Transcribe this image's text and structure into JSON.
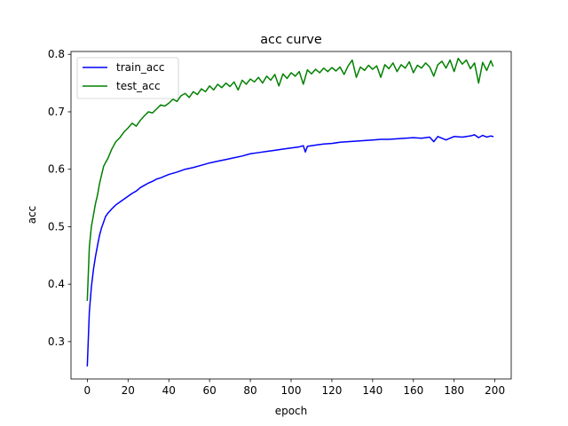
{
  "chart_data": {
    "type": "line",
    "title": "acc curve",
    "xlabel": "epoch",
    "ylabel": "acc",
    "xlim": [
      -8,
      208
    ],
    "ylim": [
      0.235,
      0.805
    ],
    "xticks": [
      0,
      20,
      40,
      60,
      80,
      100,
      120,
      140,
      160,
      180,
      200
    ],
    "yticks": [
      0.3,
      0.4,
      0.5,
      0.6,
      0.7,
      0.8
    ],
    "grid": false,
    "legend_position": "upper left",
    "colors": {
      "train_acc": "#0000ff",
      "test_acc": "#008000"
    },
    "series": [
      {
        "name": "train_acc",
        "color": "#0000ff",
        "points": [
          [
            0,
            0.258
          ],
          [
            1,
            0.352
          ],
          [
            2,
            0.395
          ],
          [
            3,
            0.425
          ],
          [
            4,
            0.448
          ],
          [
            5,
            0.467
          ],
          [
            6,
            0.485
          ],
          [
            7,
            0.498
          ],
          [
            8,
            0.508
          ],
          [
            9,
            0.518
          ],
          [
            10,
            0.523
          ],
          [
            12,
            0.531
          ],
          [
            14,
            0.538
          ],
          [
            16,
            0.543
          ],
          [
            18,
            0.548
          ],
          [
            20,
            0.553
          ],
          [
            22,
            0.558
          ],
          [
            24,
            0.562
          ],
          [
            26,
            0.568
          ],
          [
            28,
            0.572
          ],
          [
            30,
            0.576
          ],
          [
            32,
            0.579
          ],
          [
            34,
            0.583
          ],
          [
            36,
            0.585
          ],
          [
            38,
            0.588
          ],
          [
            40,
            0.591
          ],
          [
            44,
            0.595
          ],
          [
            48,
            0.6
          ],
          [
            52,
            0.603
          ],
          [
            56,
            0.607
          ],
          [
            60,
            0.611
          ],
          [
            64,
            0.614
          ],
          [
            68,
            0.617
          ],
          [
            72,
            0.62
          ],
          [
            76,
            0.623
          ],
          [
            80,
            0.627
          ],
          [
            84,
            0.629
          ],
          [
            88,
            0.631
          ],
          [
            92,
            0.633
          ],
          [
            96,
            0.635
          ],
          [
            100,
            0.637
          ],
          [
            104,
            0.639
          ],
          [
            106,
            0.641
          ],
          [
            107,
            0.63
          ],
          [
            108,
            0.64
          ],
          [
            112,
            0.642
          ],
          [
            116,
            0.644
          ],
          [
            120,
            0.645
          ],
          [
            124,
            0.647
          ],
          [
            128,
            0.648
          ],
          [
            132,
            0.649
          ],
          [
            136,
            0.65
          ],
          [
            140,
            0.651
          ],
          [
            144,
            0.652
          ],
          [
            148,
            0.652
          ],
          [
            152,
            0.653
          ],
          [
            156,
            0.654
          ],
          [
            160,
            0.655
          ],
          [
            164,
            0.654
          ],
          [
            168,
            0.656
          ],
          [
            170,
            0.648
          ],
          [
            172,
            0.657
          ],
          [
            176,
            0.651
          ],
          [
            180,
            0.657
          ],
          [
            184,
            0.656
          ],
          [
            188,
            0.658
          ],
          [
            190,
            0.66
          ],
          [
            192,
            0.655
          ],
          [
            194,
            0.659
          ],
          [
            196,
            0.656
          ],
          [
            198,
            0.658
          ],
          [
            199,
            0.657
          ]
        ]
      },
      {
        "name": "test_acc",
        "color": "#008000",
        "points": [
          [
            0,
            0.372
          ],
          [
            1,
            0.465
          ],
          [
            2,
            0.5
          ],
          [
            3,
            0.52
          ],
          [
            4,
            0.54
          ],
          [
            5,
            0.555
          ],
          [
            6,
            0.575
          ],
          [
            7,
            0.59
          ],
          [
            8,
            0.605
          ],
          [
            9,
            0.612
          ],
          [
            10,
            0.618
          ],
          [
            12,
            0.635
          ],
          [
            14,
            0.648
          ],
          [
            16,
            0.655
          ],
          [
            18,
            0.665
          ],
          [
            20,
            0.672
          ],
          [
            22,
            0.68
          ],
          [
            24,
            0.675
          ],
          [
            26,
            0.685
          ],
          [
            28,
            0.693
          ],
          [
            30,
            0.7
          ],
          [
            32,
            0.698
          ],
          [
            34,
            0.705
          ],
          [
            36,
            0.712
          ],
          [
            38,
            0.71
          ],
          [
            40,
            0.715
          ],
          [
            42,
            0.722
          ],
          [
            44,
            0.718
          ],
          [
            46,
            0.728
          ],
          [
            48,
            0.732
          ],
          [
            50,
            0.725
          ],
          [
            52,
            0.735
          ],
          [
            54,
            0.73
          ],
          [
            56,
            0.74
          ],
          [
            58,
            0.735
          ],
          [
            60,
            0.745
          ],
          [
            62,
            0.738
          ],
          [
            64,
            0.748
          ],
          [
            66,
            0.742
          ],
          [
            68,
            0.75
          ],
          [
            70,
            0.744
          ],
          [
            72,
            0.752
          ],
          [
            74,
            0.738
          ],
          [
            76,
            0.755
          ],
          [
            78,
            0.748
          ],
          [
            80,
            0.757
          ],
          [
            82,
            0.752
          ],
          [
            84,
            0.76
          ],
          [
            86,
            0.75
          ],
          [
            88,
            0.762
          ],
          [
            90,
            0.755
          ],
          [
            92,
            0.765
          ],
          [
            94,
            0.745
          ],
          [
            96,
            0.766
          ],
          [
            98,
            0.758
          ],
          [
            100,
            0.768
          ],
          [
            102,
            0.762
          ],
          [
            104,
            0.77
          ],
          [
            106,
            0.748
          ],
          [
            108,
            0.773
          ],
          [
            110,
            0.766
          ],
          [
            112,
            0.774
          ],
          [
            114,
            0.768
          ],
          [
            116,
            0.776
          ],
          [
            118,
            0.77
          ],
          [
            120,
            0.777
          ],
          [
            122,
            0.771
          ],
          [
            124,
            0.778
          ],
          [
            126,
            0.765
          ],
          [
            128,
            0.78
          ],
          [
            130,
            0.79
          ],
          [
            132,
            0.76
          ],
          [
            134,
            0.778
          ],
          [
            136,
            0.772
          ],
          [
            138,
            0.781
          ],
          [
            140,
            0.774
          ],
          [
            142,
            0.78
          ],
          [
            144,
            0.76
          ],
          [
            146,
            0.782
          ],
          [
            148,
            0.775
          ],
          [
            150,
            0.785
          ],
          [
            152,
            0.77
          ],
          [
            154,
            0.782
          ],
          [
            156,
            0.776
          ],
          [
            158,
            0.787
          ],
          [
            160,
            0.768
          ],
          [
            162,
            0.781
          ],
          [
            164,
            0.776
          ],
          [
            166,
            0.785
          ],
          [
            168,
            0.778
          ],
          [
            170,
            0.762
          ],
          [
            172,
            0.782
          ],
          [
            174,
            0.788
          ],
          [
            176,
            0.776
          ],
          [
            178,
            0.79
          ],
          [
            180,
            0.77
          ],
          [
            182,
            0.793
          ],
          [
            184,
            0.783
          ],
          [
            186,
            0.79
          ],
          [
            188,
            0.775
          ],
          [
            190,
            0.785
          ],
          [
            192,
            0.75
          ],
          [
            194,
            0.786
          ],
          [
            196,
            0.772
          ],
          [
            198,
            0.789
          ],
          [
            199,
            0.78
          ]
        ]
      }
    ]
  }
}
